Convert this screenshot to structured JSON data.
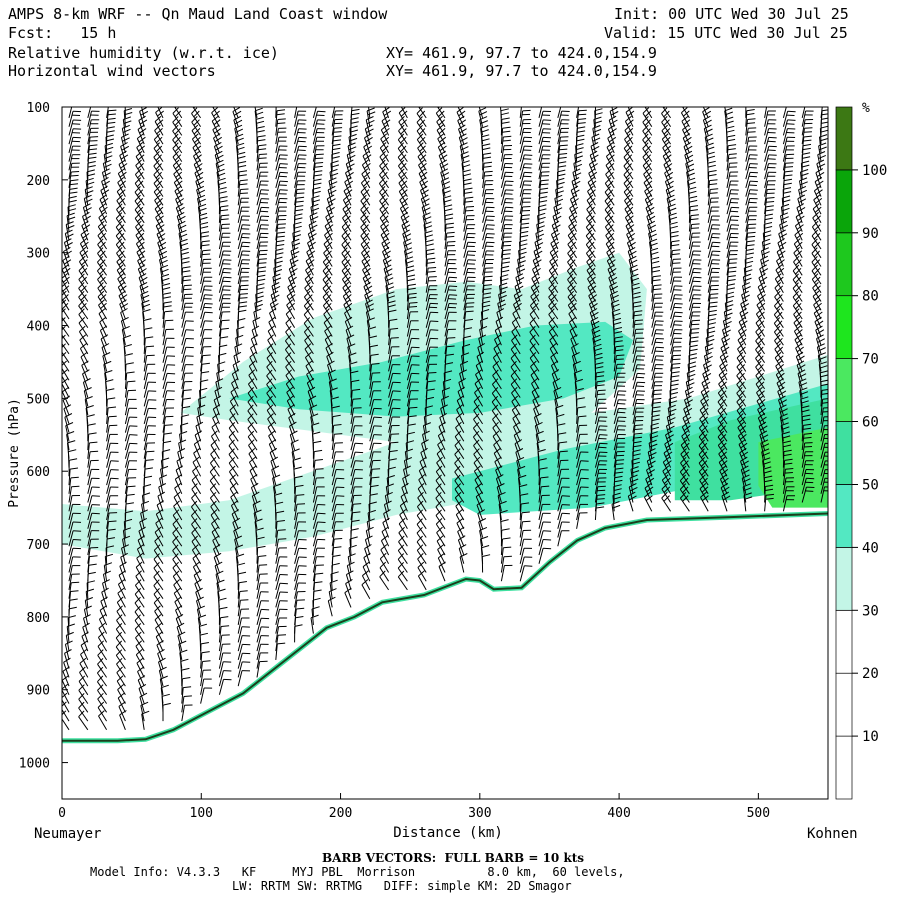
{
  "header": {
    "title": "AMPS 8-km WRF -- Qn Maud Land Coast window",
    "fcst": "Fcst:   15 h",
    "field1": "Relative humidity (w.r.t. ice)",
    "field2": "Horizontal wind vectors",
    "xy1": "XY= 461.9, 97.7 to 424.0,154.9",
    "xy2": "XY= 461.9, 97.7 to 424.0,154.9",
    "init": "Init: 00 UTC Wed 30 Jul 25",
    "valid": "Valid: 15 UTC Wed 30 Jul 25"
  },
  "footer": {
    "barb": "BARB VECTORS:  FULL BARB = 10 kts",
    "model1": "Model Info: V4.3.3   KF     MYJ PBL  Morrison          8.0 km,  60 levels,",
    "model2": "LW: RRTM SW: RRTMG   DIFF: simple KM: 2D Smagor"
  },
  "labels": {
    "left_station": "Neumayer",
    "right_station": "Kohnen"
  },
  "colors": {
    "c30": "#c3f5e6",
    "c40": "#53e8c2",
    "c50": "#3fe0a0",
    "c60": "#4be860",
    "c70": "#1ee61e",
    "c80": "#1ec81e",
    "c90": "#0aa50a",
    "c100": "#3c7814",
    "terrain": "#1c3f1c"
  },
  "chart_data": {
    "type": "heatmap",
    "xlabel": "Distance (km)",
    "ylabel": "Pressure (hPa)",
    "xlim": [
      0,
      550
    ],
    "ylim": [
      1050,
      100
    ],
    "xticks": [
      0,
      100,
      200,
      300,
      400,
      500
    ],
    "yticks": [
      100,
      200,
      300,
      400,
      500,
      600,
      700,
      800,
      900,
      1000
    ],
    "colorbar": {
      "unit": "%",
      "levels": [
        10,
        20,
        30,
        40,
        50,
        60,
        70,
        80,
        90,
        100
      ],
      "colors": [
        "#ffffff",
        "#ffffff",
        "#ffffff",
        "#c3f5e6",
        "#53e8c2",
        "#3fe0a0",
        "#4be860",
        "#1ee61e",
        "#1ec81e",
        "#0aa50a",
        "#3c7814"
      ]
    },
    "terrain_surface": {
      "x": [
        0,
        40,
        60,
        80,
        100,
        130,
        160,
        190,
        210,
        230,
        260,
        290,
        300,
        310,
        330,
        350,
        370,
        390,
        420,
        480,
        550
      ],
      "p": [
        970,
        970,
        968,
        955,
        935,
        905,
        860,
        815,
        800,
        780,
        770,
        748,
        750,
        762,
        760,
        725,
        695,
        678,
        667,
        663,
        658
      ]
    },
    "rh_regions": [
      {
        "level": 30,
        "x": [
          0,
          60,
          120,
          180,
          240,
          300,
          380,
          450,
          550,
          550,
          450,
          380,
          300,
          240,
          180,
          120,
          60,
          0
        ],
        "p": [
          645,
          655,
          640,
          600,
          560,
          540,
          520,
          500,
          440,
          510,
          560,
          600,
          640,
          660,
          690,
          710,
          720,
          700
        ]
      },
      {
        "level": 30,
        "x": [
          85,
          130,
          180,
          240,
          290,
          330,
          370,
          400,
          420,
          415,
          380,
          300,
          240,
          180,
          120,
          85
        ],
        "p": [
          520,
          450,
          390,
          350,
          340,
          350,
          320,
          300,
          350,
          460,
          520,
          560,
          560,
          545,
          530,
          520
        ]
      },
      {
        "level": 40,
        "x": [
          120,
          170,
          230,
          290,
          340,
          390,
          410,
          400,
          360,
          300,
          240,
          170,
          120
        ],
        "p": [
          500,
          470,
          450,
          420,
          400,
          395,
          420,
          470,
          500,
          520,
          525,
          515,
          500
        ]
      },
      {
        "level": 40,
        "x": [
          280,
          360,
          440,
          550,
          550,
          460,
          380,
          300,
          280
        ],
        "p": [
          610,
          570,
          540,
          480,
          560,
          620,
          650,
          660,
          640
        ]
      },
      {
        "level": 50,
        "x": [
          440,
          480,
          550,
          550,
          480,
          440
        ],
        "p": [
          560,
          530,
          500,
          620,
          640,
          640
        ]
      },
      {
        "level": 60,
        "x": [
          500,
          550,
          550,
          510,
          500
        ],
        "p": [
          560,
          540,
          650,
          650,
          620
        ]
      }
    ]
  }
}
